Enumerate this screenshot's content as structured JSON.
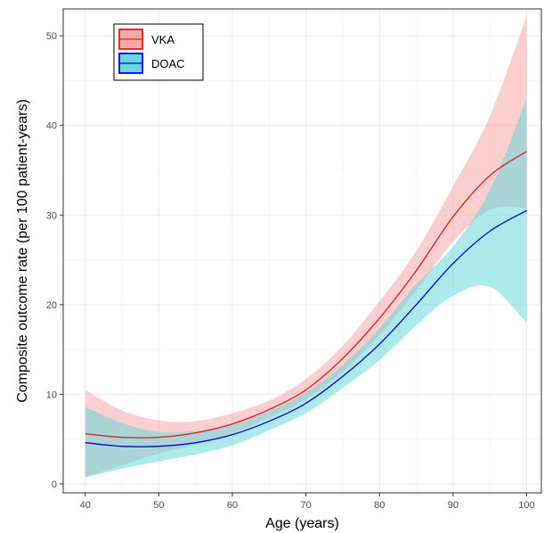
{
  "chart_data": {
    "type": "line",
    "title": "",
    "xlabel": "Age (years)",
    "ylabel": "Composite outcome rate (per 100 patient-years)",
    "xlim": [
      37,
      102
    ],
    "ylim": [
      -1,
      53
    ],
    "x_ticks": [
      40,
      50,
      60,
      70,
      80,
      90,
      100
    ],
    "y_ticks": [
      0,
      10,
      20,
      30,
      40,
      50
    ],
    "grid": true,
    "legend_position": "top-left",
    "series": [
      {
        "name": "VKA",
        "line_color": "#e41a1c",
        "band_color": "#f8a8a8",
        "x": [
          40,
          45,
          50,
          55,
          60,
          65,
          70,
          75,
          80,
          85,
          90,
          95,
          100
        ],
        "y": [
          5.6,
          5.2,
          5.2,
          5.7,
          6.7,
          8.3,
          10.5,
          14.0,
          18.5,
          23.8,
          29.8,
          34.4,
          37.1
        ],
        "lower": [
          0.8,
          2.1,
          3.4,
          4.4,
          5.6,
          7.4,
          9.4,
          12.5,
          16.6,
          21.6,
          27.0,
          30.6,
          30.8
        ],
        "upper": [
          10.5,
          8.2,
          7.1,
          7.0,
          7.9,
          9.3,
          11.7,
          15.4,
          20.4,
          26.0,
          33.2,
          41.0,
          52.2
        ]
      },
      {
        "name": "DOAC",
        "line_color": "#0000ee",
        "band_color": "#6ad9dc",
        "x": [
          40,
          45,
          50,
          55,
          60,
          65,
          70,
          75,
          80,
          85,
          90,
          95,
          100
        ],
        "y": [
          4.6,
          4.2,
          4.2,
          4.6,
          5.5,
          7.0,
          9.0,
          12.0,
          15.6,
          20.0,
          24.6,
          28.2,
          30.5
        ],
        "lower": [
          0.7,
          1.7,
          2.5,
          3.3,
          4.3,
          6.0,
          7.9,
          10.7,
          13.8,
          17.7,
          21.0,
          22.0,
          18.0
        ],
        "upper": [
          8.6,
          6.8,
          5.8,
          5.9,
          6.6,
          8.1,
          10.2,
          13.3,
          17.4,
          22.3,
          26.5,
          32.8,
          43.0
        ]
      }
    ]
  }
}
